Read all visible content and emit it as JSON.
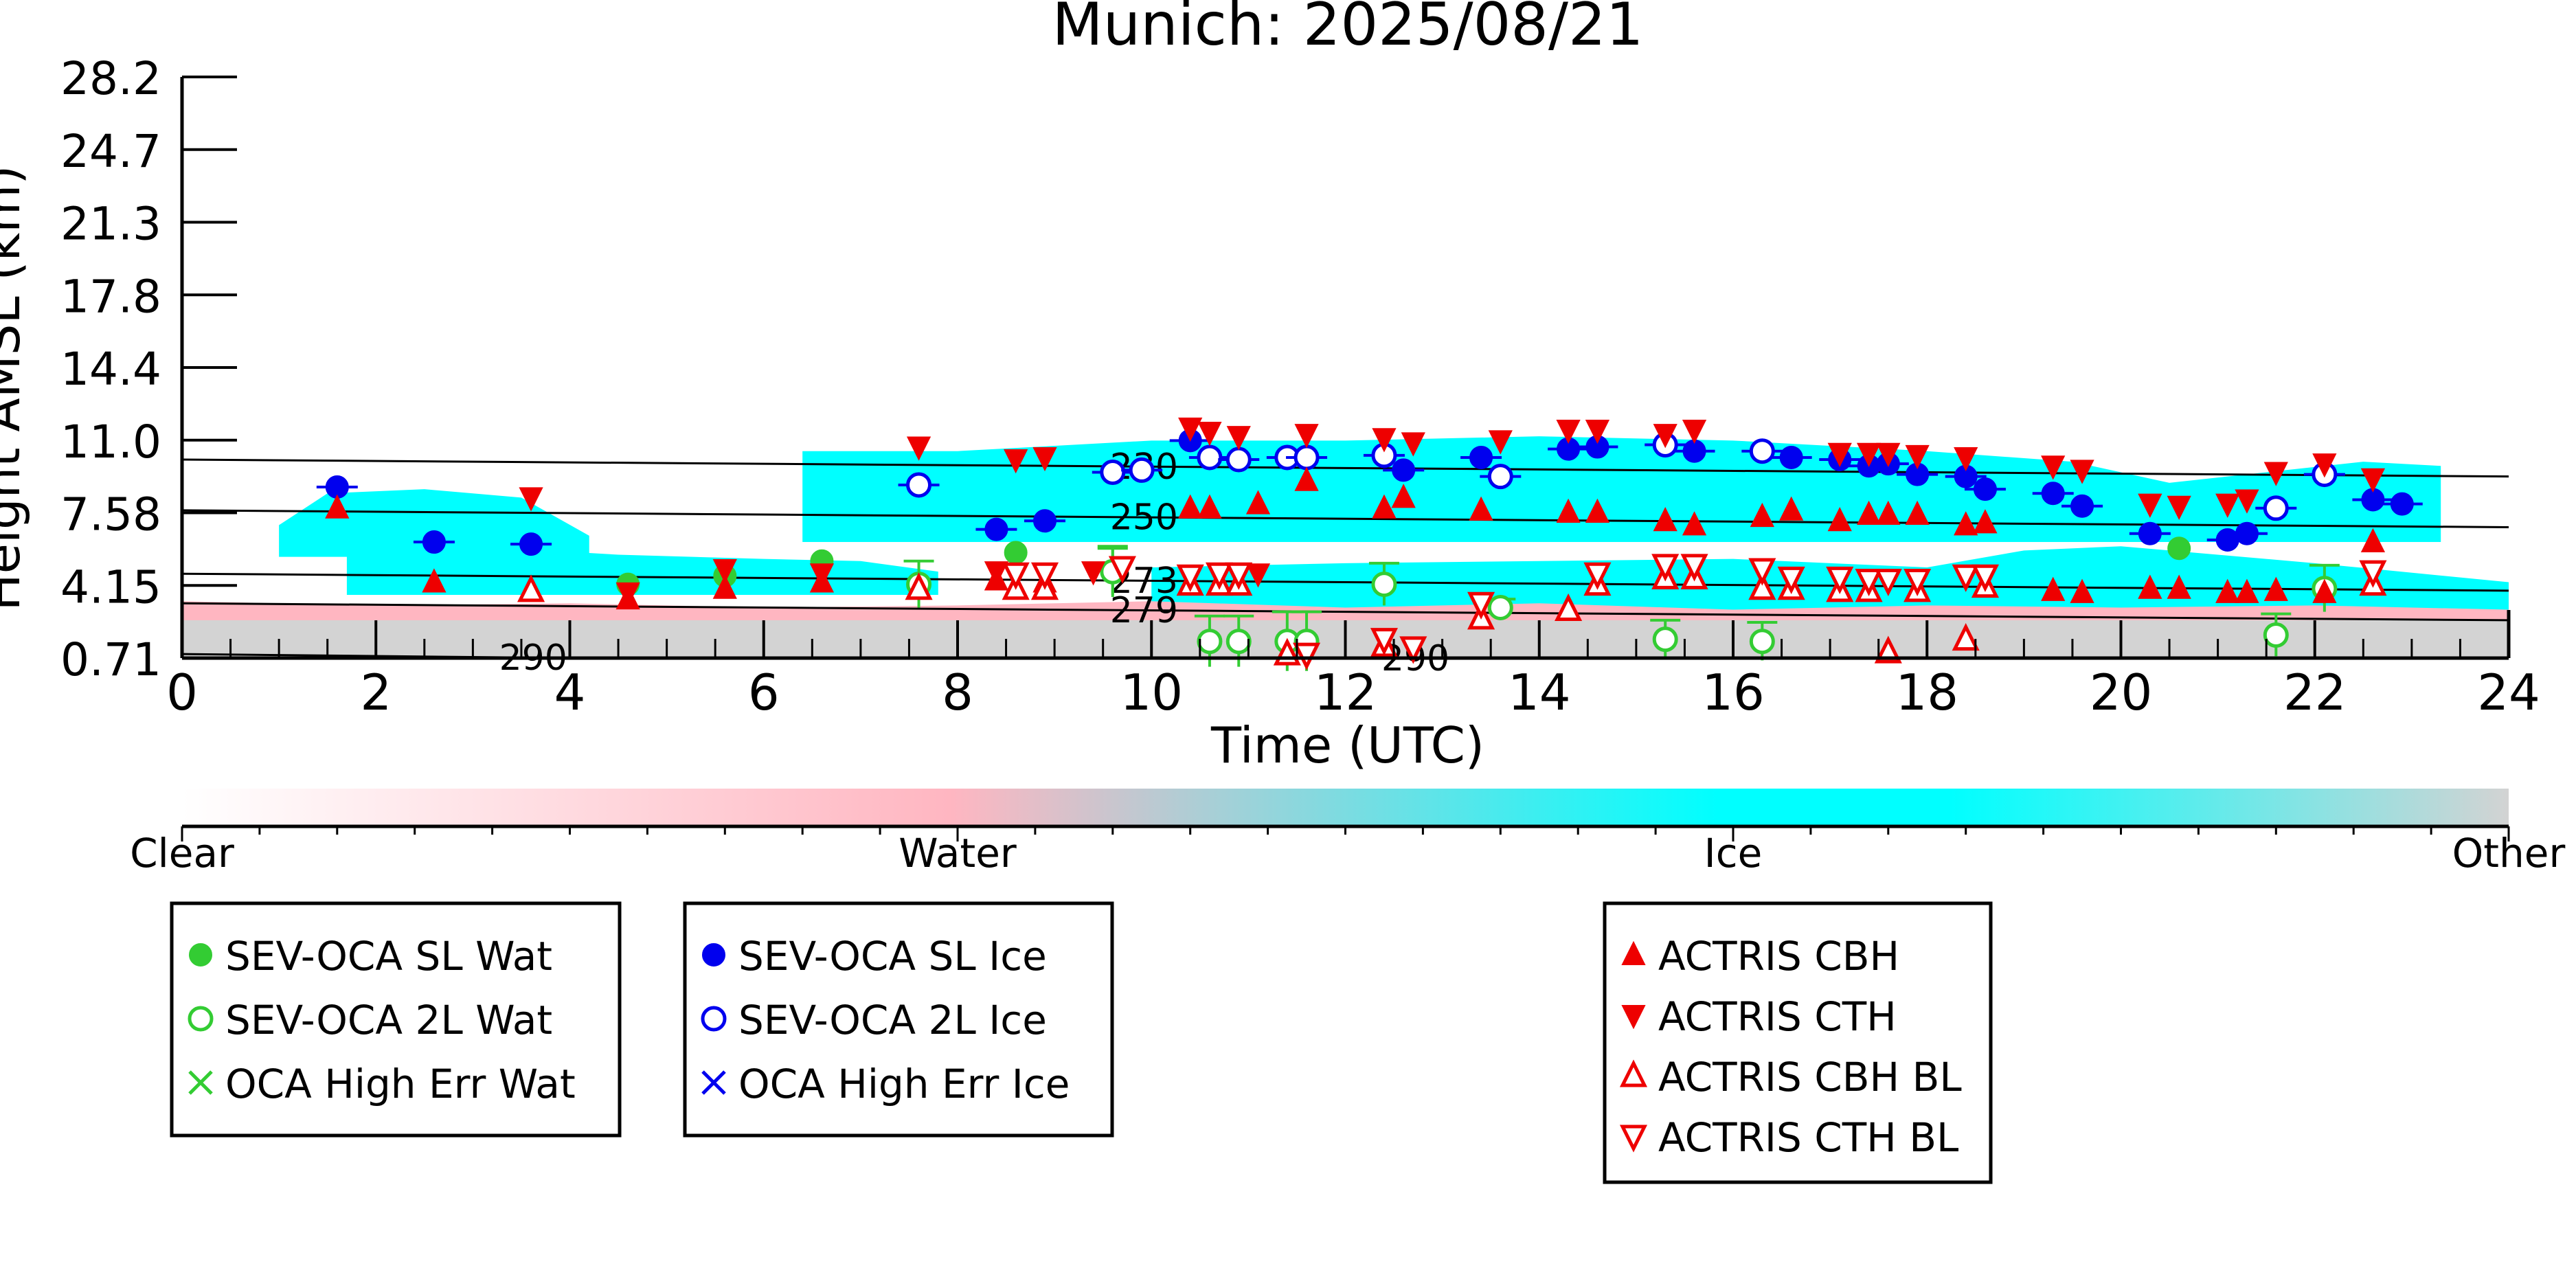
{
  "chart_data": {
    "type": "scatter",
    "title": "Munich: 2025/08/21",
    "xlabel": "Time (UTC)",
    "ylabel": "Height AMSL (km)",
    "xlim": [
      0,
      24
    ],
    "ylim": [
      0.71,
      28.2
    ],
    "x_ticks": [
      "0",
      "2",
      "4",
      "6",
      "8",
      "10",
      "12",
      "14",
      "16",
      "18",
      "20",
      "22",
      "24"
    ],
    "y_ticks": [
      "0.71",
      "4.15",
      "7.58",
      "11.0",
      "14.4",
      "17.8",
      "21.3",
      "24.7",
      "28.2"
    ],
    "grid": false,
    "colorbar": {
      "labels": [
        "Clear",
        "Water",
        "Ice",
        "Other"
      ],
      "colors": [
        "#ffffff",
        "#ffb6c1",
        "#00ffff",
        "#d3d3d3"
      ]
    },
    "background_regions": [
      {
        "name": "Ice",
        "color": "#00ffff",
        "x": [
          1.0,
          1.5,
          2.5,
          3.5,
          4.2
        ],
        "y": [
          7.0,
          8.5,
          8.7,
          8.3,
          6.5
        ],
        "bottom": 5.5
      },
      {
        "name": "Ice",
        "color": "#00ffff",
        "x": [
          1.7,
          3.0,
          4.5,
          6.0,
          7.0,
          7.8
        ],
        "y": [
          6.5,
          6.0,
          5.6,
          5.4,
          5.3,
          4.8
        ],
        "bottom": 3.7
      },
      {
        "name": "Ice",
        "color": "#00ffff",
        "x": [
          6.4,
          8.0,
          10.0,
          12.0,
          14.0,
          16.0,
          18.0,
          19.5,
          20.5,
          21.5,
          22.5,
          23.3
        ],
        "y": [
          10.5,
          10.5,
          11.0,
          11.0,
          11.2,
          11.0,
          10.5,
          10.0,
          9.0,
          9.5,
          10.0,
          9.8
        ],
        "bottom": 6.2
      },
      {
        "name": "Ice",
        "color": "#00ffff",
        "x": [
          10.0,
          12.0,
          14.0,
          16.0,
          18.0,
          19.0,
          20.0,
          22.0,
          24.0
        ],
        "y": [
          5.0,
          5.2,
          5.3,
          5.4,
          5.0,
          5.8,
          6.0,
          5.2,
          4.3
        ],
        "bottom": 3.0
      },
      {
        "name": "Water",
        "color": "#ffb6c1",
        "x": [
          0,
          2,
          4,
          6,
          8,
          10,
          12,
          14,
          16,
          18,
          20,
          22,
          24
        ],
        "y": [
          3.4,
          3.2,
          3.3,
          3.1,
          3.2,
          3.4,
          3.1,
          3.3,
          3.0,
          3.2,
          3.1,
          3.2,
          3.0
        ],
        "bottom": 2.4
      },
      {
        "name": "Other",
        "color": "#d3d3d3",
        "x": [
          0,
          24
        ],
        "y": [
          2.5,
          2.5
        ],
        "bottom": 0.71
      }
    ],
    "contours": [
      {
        "label": "230",
        "x": [
          0,
          24
        ],
        "y": [
          10.1,
          9.3
        ],
        "label_x": 9.5
      },
      {
        "label": "250",
        "x": [
          0,
          24
        ],
        "y": [
          7.7,
          6.9
        ],
        "label_x": 9.5
      },
      {
        "label": "273",
        "x": [
          0,
          24
        ],
        "y": [
          4.7,
          3.9
        ],
        "label_x": 9.5
      },
      {
        "label": "279",
        "x": [
          0,
          24
        ],
        "y": [
          3.3,
          2.5
        ],
        "label_x": 9.5
      },
      {
        "label": "290",
        "x": [
          0,
          4.0
        ],
        "y": [
          0.9,
          0.71
        ],
        "label_x": 3.2
      },
      {
        "label": "290",
        "x": [
          11.4,
          13.0
        ],
        "y": [
          0.71,
          0.71
        ],
        "label_x": 12.3
      }
    ],
    "series": [
      {
        "name": "SEV-OCA SL Wat",
        "marker": "filled-circle",
        "color": "#33cc33",
        "x": [
          4.6,
          5.6,
          6.6,
          8.6,
          9.6,
          20.6
        ],
        "y": [
          4.2,
          4.6,
          5.3,
          5.7,
          4.8,
          5.9
        ],
        "err": [
          0.0,
          0.0,
          0.0,
          0.0,
          1.2,
          0.0
        ]
      },
      {
        "name": "SEV-OCA 2L Wat",
        "marker": "open-circle",
        "color": "#33cc33",
        "x": [
          7.6,
          9.6,
          10.6,
          10.9,
          11.4,
          11.6,
          12.4,
          13.6,
          15.3,
          16.3,
          21.6,
          22.1
        ],
        "y": [
          4.2,
          4.8,
          1.5,
          1.5,
          1.5,
          1.5,
          4.2,
          3.1,
          1.6,
          1.5,
          1.8,
          4.0
        ],
        "err": [
          1.1,
          1.1,
          1.2,
          1.2,
          1.4,
          1.4,
          1.0,
          0.4,
          0.9,
          0.9,
          1.0,
          1.1
        ]
      },
      {
        "name": "OCA High Err Wat",
        "marker": "x",
        "color": "#33cc33",
        "x": [],
        "y": []
      },
      {
        "name": "SEV-OCA SL Ice",
        "marker": "filled-circle",
        "color": "#0000ee",
        "x": [
          1.6,
          2.6,
          3.6,
          8.4,
          8.9,
          10.4,
          12.6,
          13.4,
          14.3,
          14.6,
          15.6,
          16.6,
          17.1,
          17.4,
          17.6,
          17.9,
          18.4,
          18.6,
          19.3,
          19.6,
          20.3,
          21.1,
          21.3,
          22.6,
          22.9
        ],
        "y": [
          8.8,
          6.2,
          6.1,
          6.8,
          7.2,
          11.0,
          9.6,
          10.2,
          10.6,
          10.7,
          10.5,
          10.2,
          10.1,
          9.8,
          9.9,
          9.4,
          9.3,
          8.7,
          8.5,
          7.9,
          6.6,
          6.3,
          6.6,
          8.2,
          8.0
        ],
        "err": [
          0.0,
          0.0,
          0.0,
          0.0,
          0.0,
          0.0,
          0.0,
          0.0,
          0.0,
          0.0,
          0.0,
          0.0,
          0.0,
          0.0,
          0.0,
          0.0,
          0.0,
          0.0,
          0.0,
          0.0,
          0.0,
          0.0,
          0.0,
          0.0,
          0.0
        ]
      },
      {
        "name": "SEV-OCA 2L Ice",
        "marker": "open-circle",
        "color": "#0000ee",
        "x": [
          7.6,
          9.6,
          9.9,
          10.6,
          10.9,
          11.4,
          11.6,
          12.4,
          13.6,
          15.3,
          16.3,
          21.6,
          22.1
        ],
        "y": [
          8.9,
          9.5,
          9.6,
          10.2,
          10.1,
          10.2,
          10.2,
          10.3,
          9.3,
          10.8,
          10.5,
          7.8,
          9.4
        ],
        "err": [
          0,
          0,
          0,
          0,
          0,
          0,
          0,
          0,
          0,
          0,
          0,
          0,
          0
        ]
      },
      {
        "name": "OCA High Err Ice",
        "marker": "x",
        "color": "#0000ee",
        "x": [],
        "y": []
      },
      {
        "name": "ACTRIS CBH",
        "marker": "filled-triangle-up",
        "color": "#ee0000",
        "x": [
          1.6,
          2.6,
          4.6,
          5.6,
          6.6,
          8.4,
          8.9,
          10.4,
          10.6,
          11.1,
          11.6,
          12.4,
          12.6,
          13.4,
          14.3,
          14.6,
          15.3,
          15.6,
          16.3,
          16.6,
          17.1,
          17.4,
          17.6,
          17.9,
          18.4,
          18.6,
          19.3,
          19.6,
          20.3,
          20.6,
          21.1,
          21.3,
          21.6,
          22.1,
          22.6
        ],
        "y": [
          7.8,
          4.3,
          3.5,
          4.0,
          4.3,
          4.4,
          4.3,
          7.8,
          7.8,
          8.0,
          9.1,
          7.8,
          8.3,
          7.7,
          7.6,
          7.6,
          7.2,
          7.0,
          7.4,
          7.7,
          7.2,
          7.5,
          7.5,
          7.5,
          7.0,
          7.1,
          3.9,
          3.8,
          4.0,
          4.0,
          3.8,
          3.8,
          3.9,
          3.8,
          6.2
        ],
        "err": []
      },
      {
        "name": "ACTRIS CTH",
        "marker": "filled-triangle-down",
        "color": "#ee0000",
        "x": [
          3.6,
          4.6,
          5.6,
          6.6,
          7.6,
          8.4,
          8.6,
          8.9,
          9.4,
          10.4,
          10.6,
          10.9,
          11.1,
          11.6,
          12.4,
          12.7,
          13.6,
          14.3,
          14.6,
          15.3,
          15.6,
          17.1,
          17.4,
          17.6,
          17.9,
          18.4,
          19.3,
          19.6,
          20.3,
          20.6,
          21.1,
          21.3,
          21.6,
          22.1,
          22.6
        ],
        "y": [
          8.3,
          3.8,
          4.9,
          4.7,
          10.7,
          4.8,
          10.1,
          10.2,
          4.8,
          11.6,
          11.4,
          11.2,
          4.7,
          11.3,
          11.1,
          10.9,
          11.0,
          11.5,
          11.5,
          11.3,
          11.5,
          10.4,
          10.4,
          10.4,
          10.3,
          10.2,
          9.8,
          9.6,
          8.0,
          7.9,
          8.0,
          8.2,
          9.5,
          9.9,
          9.2
        ],
        "err": []
      },
      {
        "name": "ACTRIS CBH BL",
        "marker": "open-triangle-up",
        "color": "#ee0000",
        "x": [
          3.6,
          7.6,
          8.6,
          8.9,
          10.4,
          10.7,
          10.9,
          11.4,
          12.4,
          13.4,
          14.3,
          14.6,
          15.3,
          15.6,
          16.3,
          16.6,
          17.1,
          17.4,
          17.6,
          17.9,
          18.4,
          18.6,
          22.6
        ],
        "y": [
          3.9,
          4.0,
          4.0,
          4.0,
          4.2,
          4.2,
          4.2,
          0.9,
          1.3,
          2.6,
          3.0,
          4.2,
          4.5,
          4.5,
          4.0,
          4.0,
          3.9,
          3.9,
          1.0,
          3.9,
          1.6,
          4.1,
          4.2
        ],
        "err": []
      },
      {
        "name": "ACTRIS CTH BL",
        "marker": "open-triangle-down",
        "color": "#ee0000",
        "x": [
          8.6,
          8.9,
          9.7,
          10.4,
          10.7,
          10.9,
          11.6,
          12.4,
          12.7,
          13.4,
          14.6,
          15.3,
          15.6,
          16.3,
          16.6,
          17.1,
          17.4,
          17.6,
          17.9,
          18.4,
          18.6,
          22.6
        ],
        "y": [
          4.7,
          4.7,
          5.0,
          4.6,
          4.7,
          4.7,
          0.9,
          1.6,
          1.2,
          3.3,
          4.7,
          5.1,
          5.1,
          4.9,
          4.5,
          4.5,
          4.4,
          4.4,
          4.4,
          4.6,
          4.6,
          4.8
        ],
        "err": []
      }
    ]
  }
}
